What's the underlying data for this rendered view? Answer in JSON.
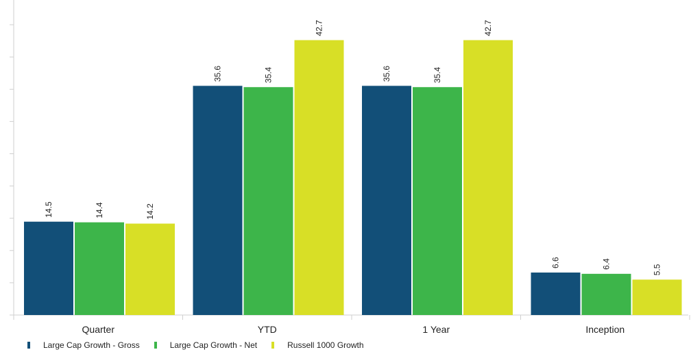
{
  "chart_data": {
    "type": "bar",
    "categories": [
      "Quarter",
      "YTD",
      "1 Year",
      "Inception"
    ],
    "series": [
      {
        "name": "Large Cap Growth - Gross",
        "color": "#124f78",
        "values": [
          14.5,
          35.6,
          35.6,
          6.6
        ]
      },
      {
        "name": "Large Cap Growth - Net",
        "color": "#3db54a",
        "values": [
          14.4,
          35.4,
          35.4,
          6.4
        ]
      },
      {
        "name": "Russell 1000 Growth",
        "color": "#d8df26",
        "values": [
          14.2,
          42.7,
          42.7,
          5.5
        ]
      }
    ],
    "title": "",
    "xlabel": "",
    "ylabel": "",
    "ylim": [
      0,
      47.5
    ],
    "y_axis_tick_labels_shown": false,
    "grid": false,
    "legend_position": "bottom-left"
  }
}
